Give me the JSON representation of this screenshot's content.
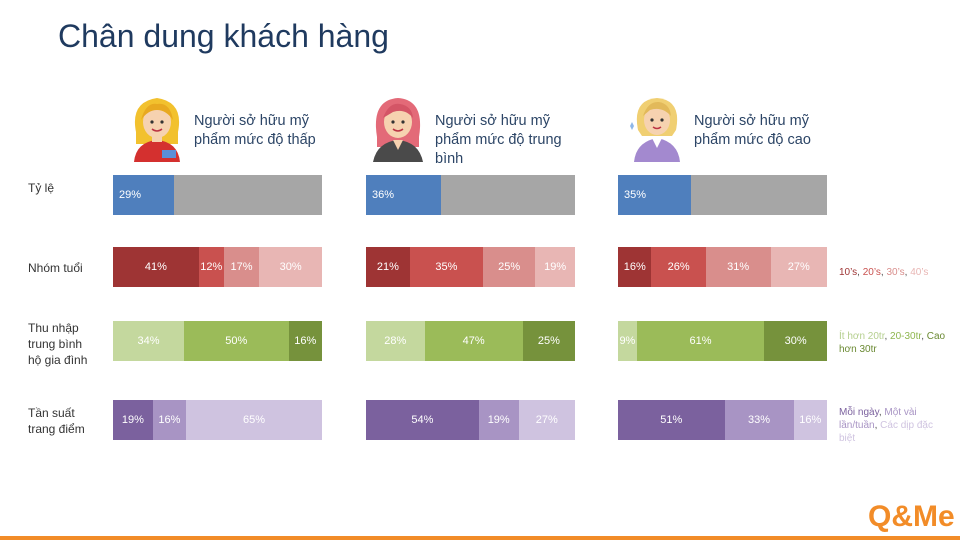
{
  "title": "Chân dung khách hàng",
  "personas": [
    {
      "title": "Người sở hữu mỹ phẩm mức độ thấp"
    },
    {
      "title": "Người sở hữu mỹ phẩm mức độ trung bình"
    },
    {
      "title": "Người sở hữu mỹ phẩm mức độ cao"
    }
  ],
  "rows": [
    {
      "label": "Tỷ lệ"
    },
    {
      "label": "Nhóm tuổi"
    },
    {
      "label": "Thu nhập trung bình hộ gia đình"
    },
    {
      "label": "Tần suất trang điểm"
    }
  ],
  "legends": {
    "age": [
      {
        "text": "10’s",
        "color": "#9e3434"
      },
      {
        "text": ", ",
        "color": "#555555"
      },
      {
        "text": "20’s",
        "color": "#c9514f"
      },
      {
        "text": ", ",
        "color": "#555555"
      },
      {
        "text": "30’s",
        "color": "#d98e8c"
      },
      {
        "text": ", ",
        "color": "#555555"
      },
      {
        "text": "40’s",
        "color": "#e8b6b4"
      }
    ],
    "income": [
      {
        "text": "Ít hơn 20tr",
        "color": "#b5cf8f"
      },
      {
        "text": ", ",
        "color": "#555555"
      },
      {
        "text": "20-30tr",
        "color": "#8fb64f"
      },
      {
        "text": ", ",
        "color": "#555555"
      },
      {
        "text": "Cao hơn 30tr",
        "color": "#6b8a33"
      }
    ],
    "frequency": [
      {
        "text": "Mỗi ngày",
        "color": "#7b619e"
      },
      {
        "text": ", ",
        "color": "#555555"
      },
      {
        "text": "Một vài lần/tuần",
        "color": "#a894c4"
      },
      {
        "text": ", ",
        "color": "#555555"
      },
      {
        "text": "Các dịp đặc biệt",
        "color": "#cfc3e0"
      }
    ]
  },
  "logo_text": "Q&Me",
  "chart_data": {
    "type": "bar",
    "stacked": true,
    "orientation": "horizontal",
    "groups": [
      "Người sở hữu mỹ phẩm mức độ thấp",
      "Người sở hữu mỹ phẩm mức độ trung bình",
      "Người sở hữu mỹ phẩm mức độ cao"
    ],
    "rows": [
      {
        "label": "Tỷ lệ",
        "colors": [
          "#4f7fbd",
          "#a6a6a6"
        ],
        "values": [
          [
            29,
            71
          ],
          [
            36,
            64
          ],
          [
            35,
            65
          ]
        ],
        "labels": [
          [
            "29%",
            ""
          ],
          [
            "36%",
            ""
          ],
          [
            "35%",
            ""
          ]
        ]
      },
      {
        "label": "Nhóm tuổi",
        "colors": [
          "#9e3434",
          "#c9514f",
          "#d98e8c",
          "#e8b6b4"
        ],
        "values": [
          [
            41,
            12,
            17,
            30
          ],
          [
            21,
            35,
            25,
            19
          ],
          [
            16,
            26,
            31,
            27
          ]
        ],
        "labels": [
          [
            "41%",
            "12%",
            "17%",
            "30%"
          ],
          [
            "21%",
            "35%",
            "25%",
            "19%"
          ],
          [
            "16%",
            "26%",
            "31%",
            "27%"
          ]
        ]
      },
      {
        "label": "Thu nhập trung bình hộ gia đình",
        "colors": [
          "#c4d89e",
          "#9bbb59",
          "#76923c"
        ],
        "values": [
          [
            34,
            50,
            16
          ],
          [
            28,
            47,
            25
          ],
          [
            9,
            61,
            30
          ]
        ],
        "labels": [
          [
            "34%",
            "50%",
            "16%"
          ],
          [
            "28%",
            "47%",
            "25%"
          ],
          [
            "9%",
            "61%",
            "30%"
          ]
        ]
      },
      {
        "label": "Tần suất trang điểm",
        "colors": [
          "#7b619e",
          "#a894c4",
          "#cfc3e0"
        ],
        "values": [
          [
            19,
            16,
            65
          ],
          [
            54,
            19,
            27
          ],
          [
            51,
            33,
            16
          ]
        ],
        "labels": [
          [
            "19%",
            "16%",
            "65%"
          ],
          [
            "54%",
            "19%",
            "27%"
          ],
          [
            "51%",
            "33%",
            "16%"
          ]
        ]
      }
    ]
  }
}
